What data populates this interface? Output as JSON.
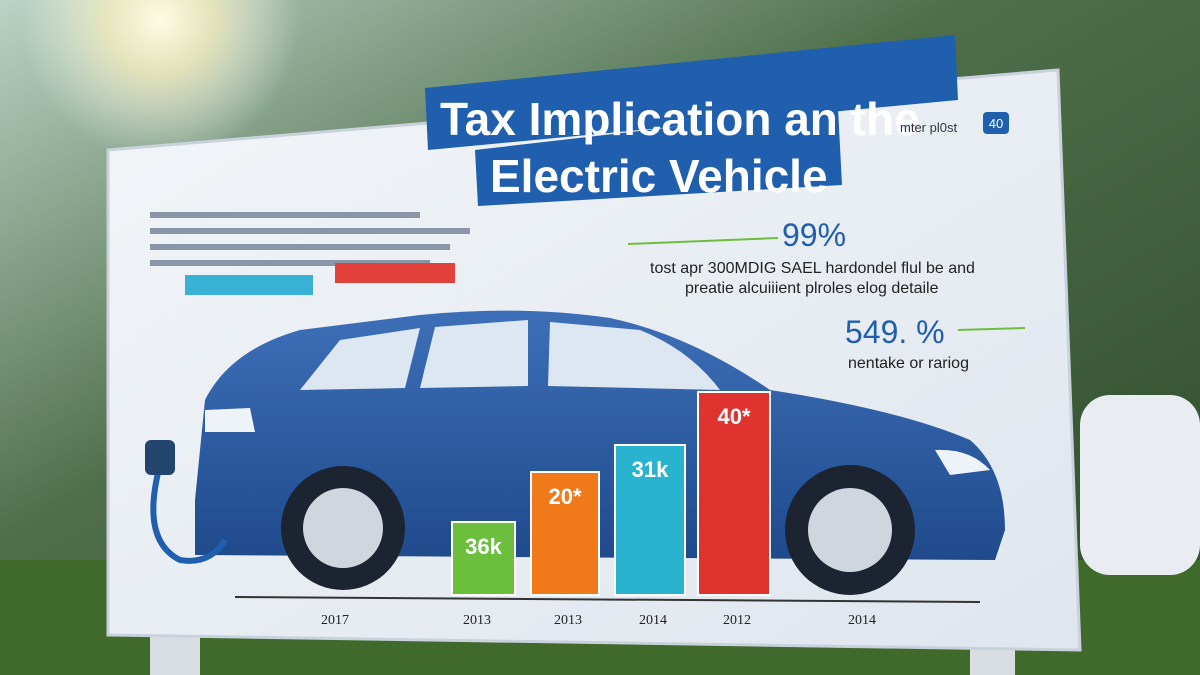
{
  "sign": {
    "title": [
      "Tax Implication an the",
      "Electric Vehicle"
    ],
    "corner_text": "mter pl0st",
    "badge": "40",
    "stat1": {
      "value": "99%",
      "lines": [
        "tost apr 300MDIG SAEL hardondel flul be and",
        "preatie alcuiiient plroles elog detaile"
      ]
    },
    "stat2": {
      "value": "549. %",
      "lines": [
        "nentake or rariog"
      ]
    },
    "bars": [
      {
        "label": "36k",
        "color": "#6bbf3c"
      },
      {
        "label": "20*",
        "color": "#f07a1a"
      },
      {
        "label": "31k",
        "color": "#2ab3cf"
      },
      {
        "label": "40*",
        "color": "#e0322e"
      }
    ],
    "years": [
      "2017",
      "2013",
      "2013",
      "2014",
      "2012",
      "2014"
    ]
  }
}
